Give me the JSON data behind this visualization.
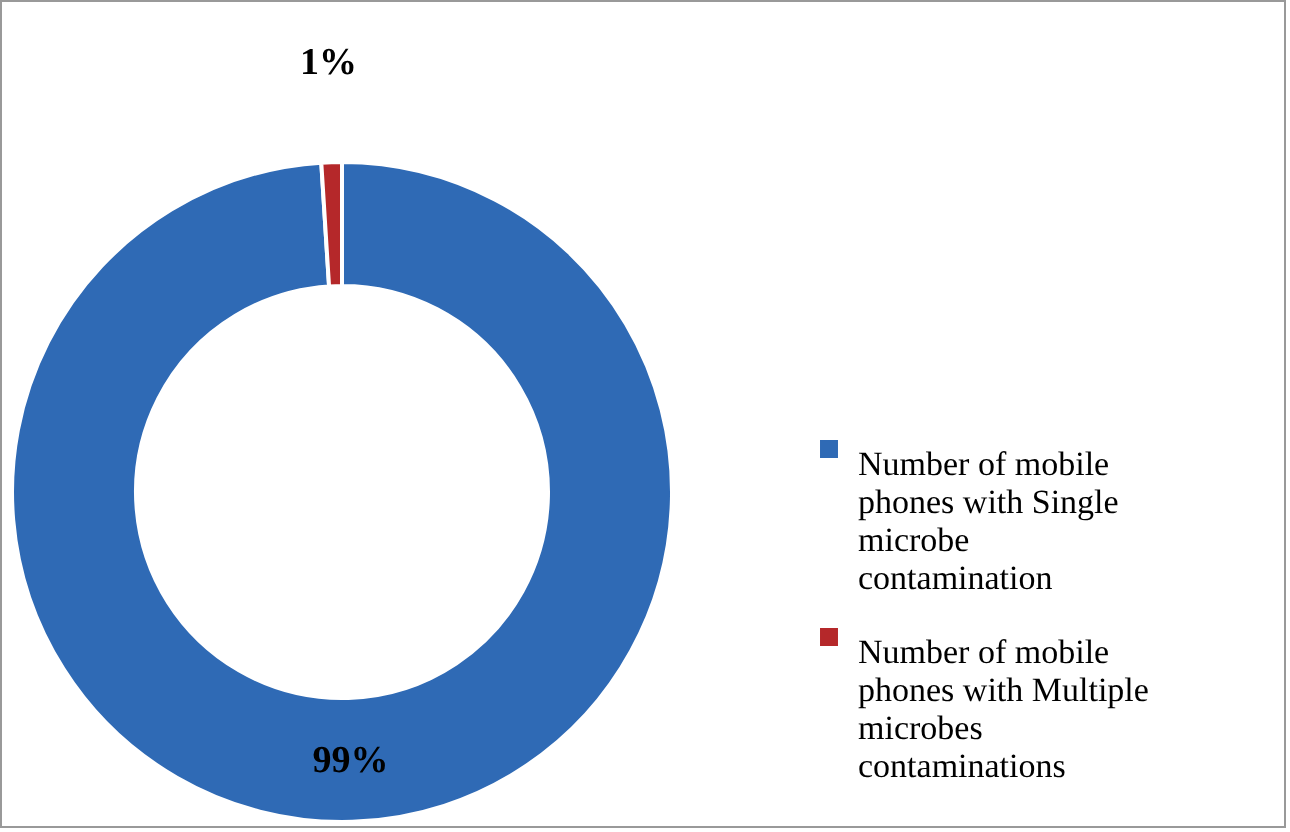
{
  "chart_data": {
    "type": "donut",
    "categories": [
      "Number of mobile phones with Single microbe contamination",
      "Number of mobile phones with Multiple microbes contaminations"
    ],
    "values": [
      99,
      1
    ],
    "colors": [
      "#2f6ab5",
      "#b5282a"
    ],
    "value_labels": [
      "99%",
      "1%"
    ],
    "legend": "right"
  }
}
